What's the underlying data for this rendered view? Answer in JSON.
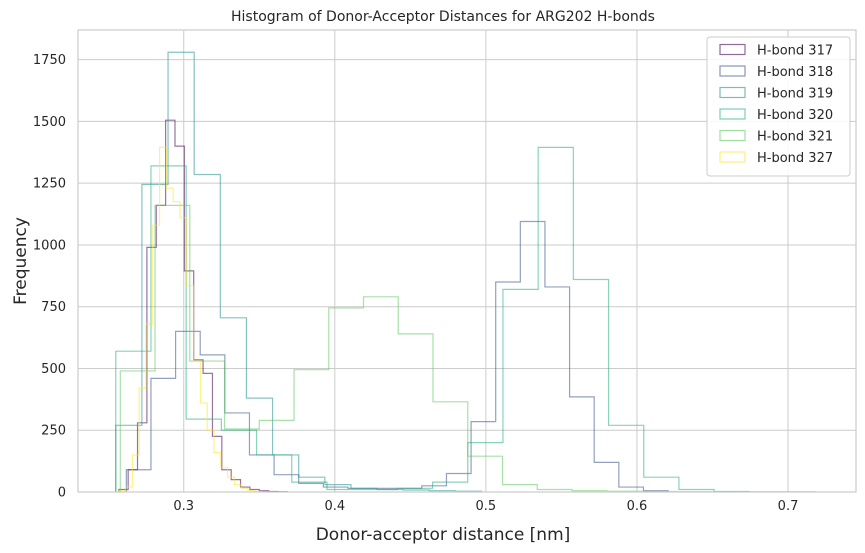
{
  "chart_data": {
    "type": "histogram",
    "title": "Histogram of Donor-Acceptor Distances for ARG202 H-bonds",
    "xlabel": "Donor-acceptor distance [nm]",
    "ylabel": "Frequency",
    "xlim": [
      0.23,
      0.745
    ],
    "ylim": [
      0,
      1870
    ],
    "xticks": [
      0.3,
      0.4,
      0.5,
      0.6,
      0.7
    ],
    "xtick_labels": [
      "0.3",
      "0.4",
      "0.5",
      "0.6",
      "0.7"
    ],
    "yticks": [
      0,
      250,
      500,
      750,
      1000,
      1250,
      1500,
      1750
    ],
    "ytick_labels": [
      "0",
      "250",
      "500",
      "750",
      "1000",
      "1250",
      "1500",
      "1750"
    ],
    "grid": true,
    "legend_position": "top-right",
    "series": [
      {
        "name": "H-bond 317",
        "color": "#440154",
        "edges": [
          0.257,
          0.2632,
          0.2694,
          0.2756,
          0.2818,
          0.288,
          0.2942,
          0.3004,
          0.3066,
          0.3128,
          0.319,
          0.3252,
          0.3314,
          0.3376,
          0.3438,
          0.35,
          0.3562,
          0.3624,
          0.3686
        ],
        "counts": [
          10,
          90,
          280,
          990,
          1160,
          1505,
          1400,
          895,
          535,
          480,
          225,
          90,
          50,
          20,
          10,
          5,
          2,
          1
        ]
      },
      {
        "name": "H-bond 318",
        "color": "#3b528b",
        "edges": [
          0.262,
          0.2783,
          0.2946,
          0.3109,
          0.3272,
          0.3435,
          0.3598,
          0.3761,
          0.3924,
          0.4087,
          0.425,
          0.4413,
          0.4576,
          0.4739,
          0.4902,
          0.5065,
          0.5228,
          0.5391,
          0.5554,
          0.5717,
          0.588,
          0.6043,
          0.6206
        ],
        "counts": [
          90,
          460,
          650,
          555,
          320,
          150,
          70,
          35,
          20,
          15,
          15,
          15,
          25,
          75,
          285,
          850,
          1095,
          830,
          385,
          120,
          20,
          5
        ]
      },
      {
        "name": "H-bond 319",
        "color": "#21918c",
        "edges": [
          0.255,
          0.2723,
          0.2896,
          0.3069,
          0.3242,
          0.3415,
          0.3588,
          0.3761,
          0.3934,
          0.4107,
          0.428,
          0.4453,
          0.4626,
          0.4799,
          0.4972
        ],
        "counts": [
          270,
          1245,
          1780,
          1285,
          705,
          380,
          150,
          60,
          30,
          15,
          10,
          8,
          5,
          3
        ]
      },
      {
        "name": "H-bond 320",
        "color": "#27ad81",
        "edges": [
          0.255,
          0.2783,
          0.3016,
          0.3249,
          0.3482,
          0.3715,
          0.3948,
          0.4181,
          0.4414,
          0.4647,
          0.488,
          0.5113,
          0.5346,
          0.5579,
          0.5812,
          0.6045,
          0.6278,
          0.6511,
          0.6744
        ],
        "counts": [
          570,
          1320,
          295,
          250,
          150,
          40,
          10,
          10,
          15,
          40,
          200,
          820,
          1395,
          860,
          270,
          60,
          10,
          2
        ]
      },
      {
        "name": "H-bond 321",
        "color": "#5ec962",
        "edges": [
          0.258,
          0.281,
          0.304,
          0.327,
          0.35,
          0.373,
          0.396,
          0.419,
          0.442,
          0.465,
          0.488,
          0.511,
          0.534,
          0.557,
          0.58,
          0.603,
          0.626,
          0.649,
          0.672,
          0.695,
          0.718
        ],
        "counts": [
          490,
          1160,
          530,
          255,
          290,
          495,
          745,
          790,
          640,
          365,
          145,
          30,
          10,
          5,
          3,
          2,
          1,
          1,
          1,
          1
        ]
      },
      {
        "name": "H-bond 327",
        "color": "#fde725",
        "edges": [
          0.257,
          0.2615,
          0.266,
          0.2705,
          0.275,
          0.2795,
          0.284,
          0.2885,
          0.293,
          0.2975,
          0.302,
          0.3065,
          0.311,
          0.3155,
          0.32,
          0.3245,
          0.329,
          0.3335,
          0.338,
          0.3425,
          0.347,
          0.3515
        ],
        "counts": [
          5,
          20,
          150,
          420,
          680,
          1080,
          1395,
          1230,
          1175,
          1110,
          835,
          530,
          360,
          250,
          160,
          100,
          60,
          30,
          15,
          5,
          2
        ]
      }
    ]
  }
}
